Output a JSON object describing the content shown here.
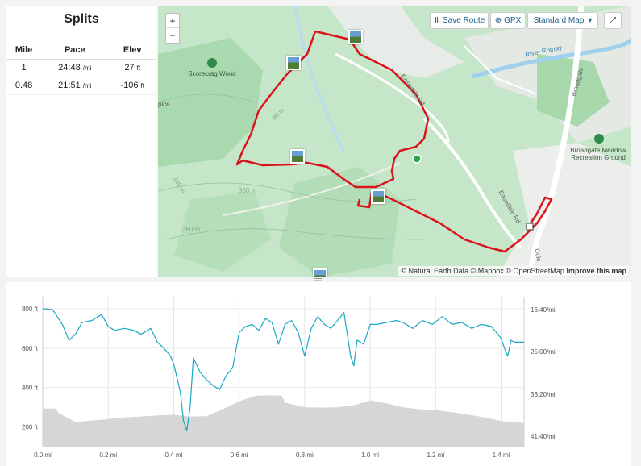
{
  "splits": {
    "title": "Splits",
    "columns": [
      "Mile",
      "Pace",
      "Elev"
    ],
    "rows": [
      {
        "mile": "1",
        "pace": "24:48",
        "pace_unit": "/mi",
        "elev": "27",
        "elev_unit": "ft"
      },
      {
        "mile": "0.48",
        "pace": "21:51",
        "pace_unit": "/mi",
        "elev": "-106",
        "elev_unit": "ft"
      }
    ]
  },
  "map": {
    "zoom_in": "+",
    "zoom_out": "−",
    "save_route": "Save Route",
    "gpx": "GPX",
    "map_style": "Standard Map",
    "labels": {
      "scorecrag": "Scorecrag Wood",
      "river": "River Rothay",
      "broadgate": "Broadgate",
      "broadgate_meadow": "Broadgate Meadow Recreation Ground",
      "easedale1": "Easedale Rd",
      "easedale2": "Easedale Rd",
      "contour350": "350 m",
      "contour360": "360 m",
      "contour340": "340 m",
      "contour90": "90 m",
      "pice": "pice",
      "cole": "Cole"
    },
    "attribution": {
      "text": "© Natural Earth Data © Mapbox © OpenStreetMap",
      "improve": "Improve this map"
    },
    "colors": {
      "route": "#d9141b",
      "start": "#27a84a",
      "green": "#bfe3c2",
      "dark_green": "#a4d6a9",
      "water": "#9fd0ee"
    }
  },
  "chart_data": {
    "type": "area",
    "x_axis": {
      "ticks": [
        "0.0 mi",
        "0.2 mi",
        "0.4 mi",
        "0.6 mi",
        "0.8 mi",
        "1.0 mi",
        "1.2 mi",
        "1.4 mi"
      ],
      "range": [
        0,
        1.47
      ]
    },
    "y_left": {
      "ticks": [
        "200 ft",
        "400 ft",
        "600 ft",
        "800 ft"
      ],
      "range": [
        100,
        820
      ]
    },
    "y_right": {
      "ticks": [
        "16:40/mi",
        "25:00/mi",
        "33:20/mi",
        "41:40/mi"
      ]
    },
    "grid": true,
    "series": [
      {
        "kind": "area",
        "color": "#d6d6d6",
        "x": [
          0.0,
          0.04,
          0.05,
          0.1,
          0.15,
          0.2,
          0.25,
          0.3,
          0.35,
          0.4,
          0.45,
          0.5,
          0.55,
          0.6,
          0.65,
          0.7,
          0.73,
          0.74,
          0.8,
          0.85,
          0.9,
          0.95,
          1.0,
          1.05,
          1.1,
          1.15,
          1.2,
          1.25,
          1.3,
          1.35,
          1.4,
          1.44,
          1.47
        ],
        "values": [
          293,
          293,
          268,
          225,
          232,
          240,
          248,
          253,
          258,
          262,
          252,
          255,
          290,
          330,
          358,
          360,
          358,
          323,
          300,
          298,
          300,
          310,
          335,
          320,
          300,
          290,
          285,
          275,
          262,
          248,
          230,
          224,
          220
        ]
      },
      {
        "kind": "line",
        "color": "#1aa7c5",
        "x": [
          0.0,
          0.03,
          0.06,
          0.08,
          0.1,
          0.12,
          0.15,
          0.18,
          0.2,
          0.22,
          0.25,
          0.28,
          0.3,
          0.33,
          0.35,
          0.37,
          0.39,
          0.4,
          0.42,
          0.43,
          0.44,
          0.45,
          0.46,
          0.48,
          0.5,
          0.52,
          0.54,
          0.56,
          0.58,
          0.6,
          0.62,
          0.64,
          0.66,
          0.68,
          0.7,
          0.72,
          0.74,
          0.76,
          0.78,
          0.8,
          0.82,
          0.84,
          0.86,
          0.88,
          0.9,
          0.92,
          0.94,
          0.95,
          0.96,
          0.98,
          1.0,
          1.02,
          1.05,
          1.08,
          1.1,
          1.13,
          1.16,
          1.19,
          1.22,
          1.25,
          1.28,
          1.31,
          1.34,
          1.37,
          1.4,
          1.41,
          1.42,
          1.43,
          1.44,
          1.47
        ],
        "values": [
          800,
          795,
          720,
          640,
          670,
          730,
          740,
          770,
          710,
          690,
          700,
          690,
          670,
          700,
          630,
          600,
          560,
          520,
          380,
          230,
          180,
          300,
          550,
          480,
          440,
          410,
          390,
          460,
          500,
          680,
          710,
          720,
          690,
          750,
          730,
          620,
          720,
          740,
          680,
          560,
          700,
          760,
          720,
          700,
          740,
          780,
          560,
          510,
          640,
          620,
          720,
          720,
          730,
          740,
          730,
          700,
          740,
          720,
          760,
          720,
          730,
          700,
          720,
          710,
          650,
          600,
          560,
          640,
          630,
          630
        ]
      }
    ]
  }
}
